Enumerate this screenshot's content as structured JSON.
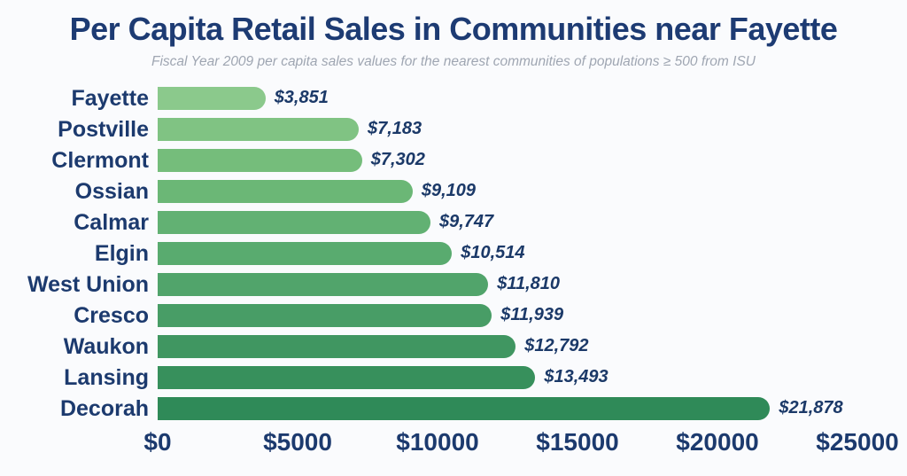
{
  "header": {
    "title": "Per Capita Retail Sales in Communities near Fayette",
    "subtitle": "Fiscal Year 2009 per capita sales values for the nearest communities of populations ≥ 500 from ISU"
  },
  "colors": {
    "background": "#FAFBFD",
    "title_text": "#1D3B73",
    "subtitle_text": "#9FA6B2",
    "category_text": "#1C3A6E",
    "value_text": "#1B3968",
    "axis_text": "#1C3A6E"
  },
  "chart_data": {
    "type": "bar",
    "orientation": "horizontal",
    "title": "Per Capita Retail Sales in Communities near Fayette",
    "subtitle": "Fiscal Year 2009 per capita sales values for the nearest communities of populations ≥ 500 from ISU",
    "categories": [
      "Fayette",
      "Postville",
      "Clermont",
      "Ossian",
      "Calmar",
      "Elgin",
      "West Union",
      "Cresco",
      "Waukon",
      "Lansing",
      "Decorah"
    ],
    "values": [
      3851,
      7183,
      7302,
      9109,
      9747,
      10514,
      11810,
      11939,
      12792,
      13493,
      21878
    ],
    "value_labels": [
      "$3,851",
      "$7,183",
      "$7,302",
      "$9,109",
      "$9,747",
      "$10,514",
      "$11,810",
      "$11,939",
      "$12,792",
      "$13,493",
      "$21,878"
    ],
    "bar_colors": [
      "#8BC98C",
      "#80C383",
      "#75BD7B",
      "#6BB776",
      "#62B173",
      "#59AB6F",
      "#51A46B",
      "#489D66",
      "#409661",
      "#37905C",
      "#2F8A58"
    ],
    "xlabel": "",
    "ylabel": "",
    "xlim": [
      0,
      25000
    ],
    "x_ticks": [
      {
        "value": 0,
        "label": "$0"
      },
      {
        "value": 5000,
        "label": "$5000"
      },
      {
        "value": 10000,
        "label": "$10000"
      },
      {
        "value": 15000,
        "label": "$15000"
      },
      {
        "value": 20000,
        "label": "$20000"
      },
      {
        "value": 25000,
        "label": "$25000"
      }
    ],
    "grid": false,
    "legend": false
  }
}
